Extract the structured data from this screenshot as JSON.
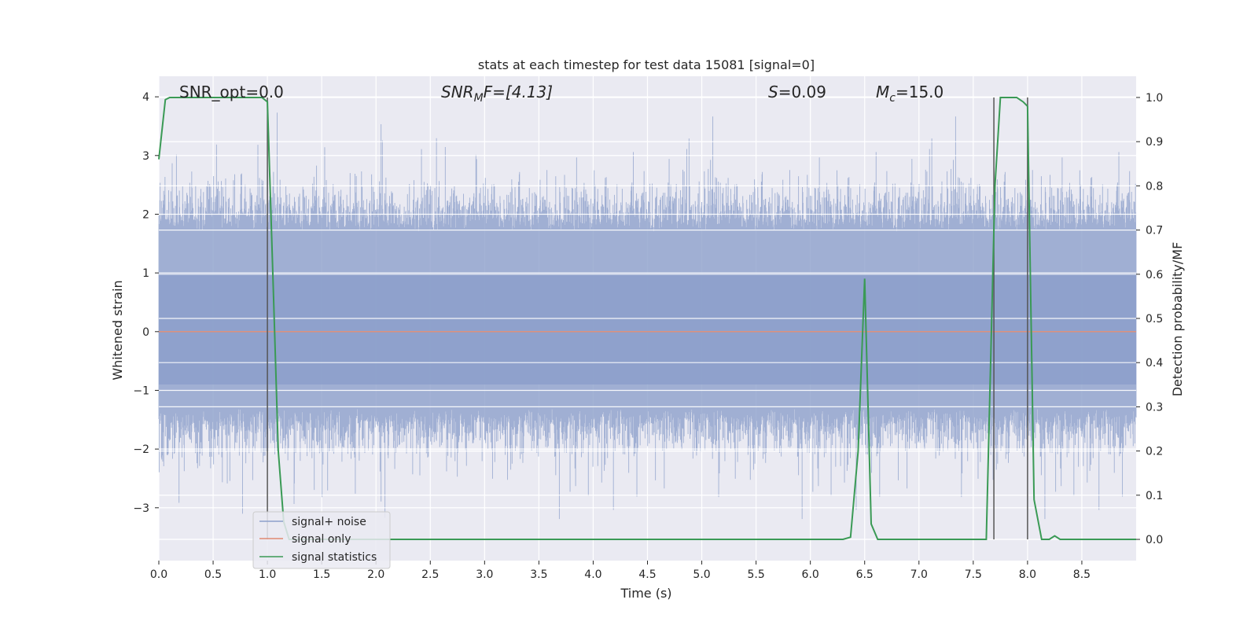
{
  "chart_data": {
    "type": "line",
    "title": "stats at each timestep for test data 15081 [signal=0]",
    "xlabel": "Time (s)",
    "ylabel_left": "Whitened strain",
    "ylabel_right": "Detection probability/MF",
    "xlim": [
      0.0,
      9.0
    ],
    "ylim_left": [
      -3.9,
      4.35
    ],
    "ylim_right": [
      -0.048,
      1.048
    ],
    "x_ticks": [
      "0.0",
      "0.5",
      "1.0",
      "1.5",
      "2.0",
      "2.5",
      "3.0",
      "3.5",
      "4.0",
      "4.5",
      "5.0",
      "5.5",
      "6.0",
      "6.5",
      "7.0",
      "7.5",
      "8.0",
      "8.5"
    ],
    "y_left_ticks": [
      "−3",
      "−2",
      "−1",
      "0",
      "1",
      "2",
      "3",
      "4"
    ],
    "y_right_ticks": [
      "0.0",
      "0.1",
      "0.2",
      "0.3",
      "0.4",
      "0.5",
      "0.6",
      "0.7",
      "0.8",
      "0.9",
      "1.0"
    ],
    "grid": true,
    "legend_placement": "lower-left",
    "annotations": {
      "snr_opt": "SNR_opt=0.0",
      "snr_mf_base": "SNR",
      "snr_mf_sub": "M",
      "snr_mf_rest": "F=[4.13]",
      "s_base": "S",
      "s_rest": "=0.09",
      "mc_base": "M",
      "mc_sub": "c",
      "mc_rest": "=15.0"
    },
    "vertical_markers_x": [
      1.0,
      7.69,
      8.0
    ],
    "series": [
      {
        "name": "signal+ noise",
        "axis": "left",
        "color": "#8da0cb",
        "note_range": [
          -3.6,
          4.0
        ],
        "band": [
          -1.3,
          1.7
        ]
      },
      {
        "name": "signal only",
        "axis": "left",
        "color": "#e08a72",
        "x": [
          0.0,
          9.0
        ],
        "y": [
          0.0,
          0.0
        ]
      },
      {
        "name": "signal statistics",
        "axis": "right",
        "color": "#3a9a55",
        "x": [
          0.0,
          0.06,
          0.1,
          0.2,
          0.4,
          0.6,
          0.8,
          0.95,
          1.0,
          1.05,
          1.1,
          1.15,
          1.2,
          1.4,
          2.0,
          3.0,
          4.0,
          5.0,
          6.0,
          6.3,
          6.37,
          6.44,
          6.5,
          6.56,
          6.62,
          6.7,
          7.0,
          7.5,
          7.62,
          7.7,
          7.75,
          7.8,
          7.9,
          7.96,
          8.0,
          8.06,
          8.13,
          8.2,
          8.25,
          8.3,
          8.4,
          8.6,
          9.0
        ],
        "y": [
          0.86,
          0.995,
          1.0,
          1.0,
          1.0,
          1.0,
          1.0,
          1.0,
          0.99,
          0.6,
          0.2,
          0.04,
          0.0,
          0.0,
          0.0,
          0.0,
          0.0,
          0.0,
          0.0,
          0.0,
          0.005,
          0.2,
          0.59,
          0.035,
          0.0,
          0.0,
          0.0,
          0.0,
          0.0,
          0.8,
          1.0,
          1.0,
          1.0,
          0.99,
          0.98,
          0.09,
          0.0,
          0.0,
          0.008,
          0.0,
          0.0,
          0.0,
          0.0
        ]
      }
    ]
  }
}
